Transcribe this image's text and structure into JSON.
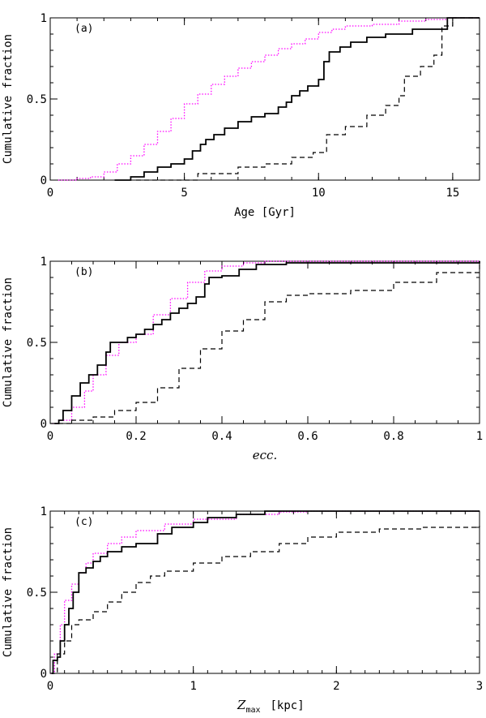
{
  "colors": {
    "axis": "#000000",
    "solid": "#000000",
    "dashed": "#000000",
    "dotted": "#ff00ff"
  },
  "chart_data": [
    {
      "type": "line",
      "panel_label": "(a)",
      "xlabel": "Age  [Gyr]",
      "ylabel": "Cumulative fraction",
      "xlim": [
        0,
        16
      ],
      "ylim": [
        0,
        1
      ],
      "xticks": [
        0,
        5,
        10,
        15
      ],
      "xtick_labels": [
        "0",
        "5",
        "10",
        "15"
      ],
      "yticks": [
        0,
        0.5,
        1
      ],
      "ytick_labels": [
        "0",
        "0.5",
        "1"
      ],
      "series": [
        {
          "name": "dotted",
          "style": "dotted",
          "color": "#ff00ff",
          "x": [
            0.3,
            1.0,
            1.5,
            2.0,
            2.5,
            3.0,
            3.5,
            4.0,
            4.5,
            5.0,
            5.5,
            6.0,
            6.5,
            7.0,
            7.5,
            8.0,
            8.5,
            9.0,
            9.5,
            10.0,
            10.5,
            11.0,
            12.0,
            13.0,
            14.0,
            14.8,
            16.0
          ],
          "y": [
            0.0,
            0.01,
            0.02,
            0.05,
            0.1,
            0.15,
            0.22,
            0.3,
            0.38,
            0.47,
            0.53,
            0.59,
            0.64,
            0.69,
            0.73,
            0.77,
            0.81,
            0.84,
            0.87,
            0.91,
            0.93,
            0.95,
            0.96,
            0.98,
            0.99,
            1.0,
            1.0
          ]
        },
        {
          "name": "solid",
          "style": "solid",
          "color": "#000000",
          "x": [
            2.4,
            3.0,
            3.5,
            4.0,
            4.5,
            5.0,
            5.3,
            5.6,
            5.8,
            6.1,
            6.5,
            7.0,
            7.5,
            8.0,
            8.5,
            8.8,
            9.0,
            9.3,
            9.6,
            10.0,
            10.2,
            10.4,
            10.8,
            11.2,
            11.8,
            12.5,
            13.5,
            14.8,
            16.0
          ],
          "y": [
            0.0,
            0.02,
            0.05,
            0.08,
            0.1,
            0.13,
            0.18,
            0.22,
            0.25,
            0.28,
            0.32,
            0.36,
            0.39,
            0.41,
            0.45,
            0.48,
            0.52,
            0.55,
            0.58,
            0.62,
            0.73,
            0.79,
            0.82,
            0.85,
            0.88,
            0.9,
            0.93,
            1.0,
            1.0
          ]
        },
        {
          "name": "dashed",
          "style": "dashed",
          "color": "#000000",
          "x": [
            3.2,
            5.5,
            7.0,
            8.0,
            9.0,
            9.8,
            10.3,
            11.0,
            11.8,
            12.5,
            13.0,
            13.2,
            13.8,
            14.3,
            14.6,
            15.0,
            16.0
          ],
          "y": [
            0.0,
            0.04,
            0.08,
            0.1,
            0.14,
            0.17,
            0.28,
            0.33,
            0.4,
            0.46,
            0.52,
            0.64,
            0.7,
            0.77,
            0.95,
            1.0,
            1.0
          ]
        }
      ]
    },
    {
      "type": "line",
      "panel_label": "(b)",
      "xlabel": "ecc.",
      "ylabel": "Cumulative fraction",
      "xlim": [
        0,
        1
      ],
      "ylim": [
        0,
        1
      ],
      "xticks": [
        0,
        0.2,
        0.4,
        0.6,
        0.8,
        1
      ],
      "xtick_labels": [
        "0",
        "0.2",
        "0.4",
        "0.6",
        "0.8",
        "1"
      ],
      "yticks": [
        0,
        0.5,
        1
      ],
      "ytick_labels": [
        "0",
        "0.5",
        "1"
      ],
      "series": [
        {
          "name": "dotted",
          "style": "dotted",
          "color": "#ff00ff",
          "x": [
            0.005,
            0.02,
            0.05,
            0.08,
            0.1,
            0.13,
            0.16,
            0.2,
            0.24,
            0.28,
            0.32,
            0.36,
            0.4,
            0.45,
            0.5,
            0.55,
            1.0
          ],
          "y": [
            0.0,
            0.02,
            0.1,
            0.2,
            0.3,
            0.42,
            0.5,
            0.55,
            0.67,
            0.77,
            0.87,
            0.94,
            0.97,
            0.99,
            1.0,
            1.0,
            1.0
          ]
        },
        {
          "name": "solid",
          "style": "solid",
          "color": "#000000",
          "x": [
            0.01,
            0.02,
            0.03,
            0.05,
            0.07,
            0.09,
            0.11,
            0.13,
            0.14,
            0.16,
            0.18,
            0.2,
            0.22,
            0.24,
            0.26,
            0.28,
            0.3,
            0.32,
            0.34,
            0.36,
            0.37,
            0.4,
            0.44,
            0.48,
            0.55,
            1.0
          ],
          "y": [
            0.0,
            0.02,
            0.08,
            0.17,
            0.25,
            0.3,
            0.36,
            0.44,
            0.5,
            0.5,
            0.53,
            0.55,
            0.58,
            0.61,
            0.64,
            0.68,
            0.71,
            0.74,
            0.78,
            0.86,
            0.9,
            0.91,
            0.95,
            0.98,
            0.99,
            1.0
          ]
        },
        {
          "name": "dashed",
          "style": "dashed",
          "color": "#000000",
          "x": [
            0.0,
            0.05,
            0.1,
            0.15,
            0.2,
            0.25,
            0.3,
            0.35,
            0.4,
            0.45,
            0.5,
            0.55,
            0.6,
            0.7,
            0.8,
            0.9,
            1.0
          ],
          "y": [
            0.0,
            0.02,
            0.04,
            0.08,
            0.13,
            0.22,
            0.34,
            0.46,
            0.57,
            0.64,
            0.75,
            0.79,
            0.8,
            0.82,
            0.87,
            0.93,
            1.0
          ]
        }
      ]
    },
    {
      "type": "line",
      "panel_label": "(c)",
      "xlabel_main": "Z",
      "xlabel_sub": "max",
      "xlabel_unit": "[kpc]",
      "ylabel": "Cumulative fraction",
      "xlim": [
        0,
        3
      ],
      "ylim": [
        0,
        1
      ],
      "xticks": [
        0,
        1,
        2,
        3
      ],
      "xtick_labels": [
        "0",
        "1",
        "2",
        "3"
      ],
      "yticks": [
        0,
        0.5,
        1
      ],
      "ytick_labels": [
        "0",
        "0.5",
        "1"
      ],
      "series": [
        {
          "name": "dotted",
          "style": "dotted",
          "color": "#ff00ff",
          "x": [
            0.0,
            0.03,
            0.07,
            0.1,
            0.15,
            0.2,
            0.25,
            0.3,
            0.4,
            0.5,
            0.6,
            0.8,
            1.0,
            1.3,
            1.6,
            1.8,
            3.0
          ],
          "y": [
            0.0,
            0.12,
            0.3,
            0.45,
            0.55,
            0.62,
            0.68,
            0.74,
            0.8,
            0.84,
            0.88,
            0.92,
            0.95,
            0.98,
            0.995,
            1.0,
            1.0
          ]
        },
        {
          "name": "solid",
          "style": "solid",
          "color": "#000000",
          "x": [
            0.01,
            0.02,
            0.05,
            0.07,
            0.1,
            0.13,
            0.16,
            0.2,
            0.25,
            0.3,
            0.35,
            0.4,
            0.5,
            0.6,
            0.75,
            0.85,
            1.0,
            1.1,
            1.3,
            1.5,
            3.0
          ],
          "y": [
            0.0,
            0.08,
            0.1,
            0.2,
            0.3,
            0.4,
            0.5,
            0.62,
            0.65,
            0.69,
            0.72,
            0.75,
            0.78,
            0.8,
            0.86,
            0.9,
            0.93,
            0.96,
            0.98,
            1.0,
            1.0
          ]
        },
        {
          "name": "dashed",
          "style": "dashed",
          "color": "#000000",
          "x": [
            0.0,
            0.05,
            0.1,
            0.15,
            0.2,
            0.3,
            0.4,
            0.5,
            0.6,
            0.7,
            0.8,
            1.0,
            1.2,
            1.4,
            1.6,
            1.8,
            2.0,
            2.3,
            2.6,
            3.0
          ],
          "y": [
            0.0,
            0.12,
            0.2,
            0.3,
            0.33,
            0.38,
            0.44,
            0.5,
            0.56,
            0.6,
            0.63,
            0.68,
            0.72,
            0.75,
            0.8,
            0.84,
            0.87,
            0.89,
            0.9,
            0.91
          ]
        }
      ]
    }
  ]
}
